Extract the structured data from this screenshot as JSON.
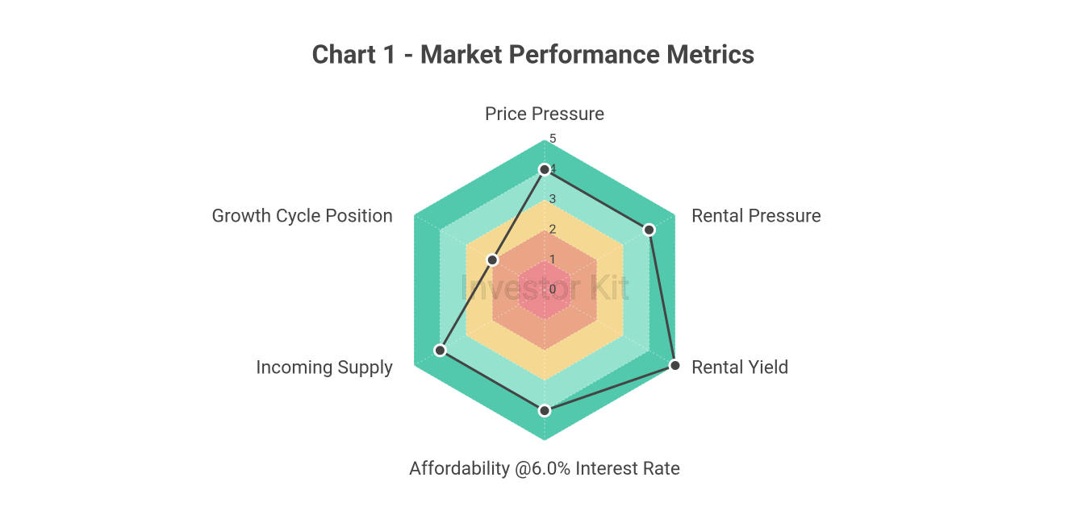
{
  "chart_data": {
    "type": "radar",
    "title": "Chart 1 - Market Performance Metrics",
    "watermark": "Investor Kit",
    "categories": [
      "Price Pressure",
      "Rental Pressure",
      "Rental Yield",
      "Affordability @6.0% Interest Rate",
      "Incoming Supply",
      "Growth Cycle Position"
    ],
    "series": [
      {
        "color": "#444444",
        "values": [
          4,
          4,
          5,
          4,
          4,
          2
        ]
      }
    ],
    "ylim": [
      0,
      5
    ],
    "yticks": [
      0,
      1,
      2,
      3,
      4,
      5
    ],
    "bands": [
      {
        "to": 5,
        "color": "#52c9ad"
      },
      {
        "to": 4,
        "color": "#95e3cf"
      },
      {
        "to": 3,
        "color": "#f5d993"
      },
      {
        "to": 2,
        "color": "#e9a585"
      },
      {
        "to": 1,
        "color": "#ec8b8f"
      }
    ],
    "grid": true
  }
}
